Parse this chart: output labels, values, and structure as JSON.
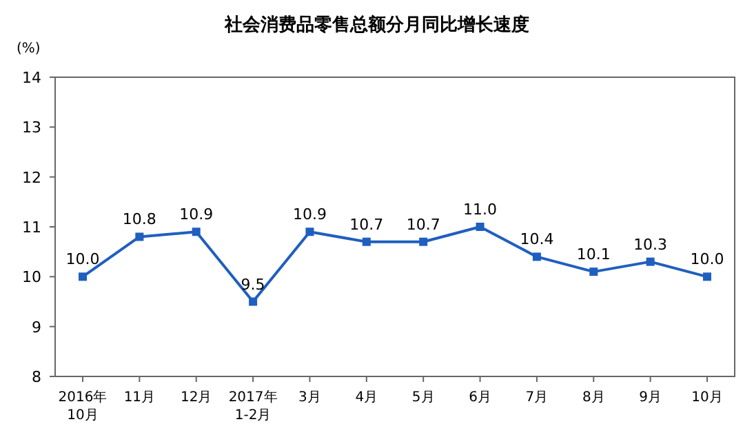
{
  "chart_data": {
    "type": "line",
    "title": "社会消费品零售总额分月同比增长速度",
    "ylabel": "(%)",
    "categories": [
      "2016年\n10月",
      "11月",
      "12月",
      "2017年\n1-2月",
      "3月",
      "4月",
      "5月",
      "6月",
      "7月",
      "8月",
      "9月",
      "10月"
    ],
    "series": [
      {
        "color": "#1f5fbf",
        "values": [
          10.0,
          10.8,
          10.9,
          9.5,
          10.9,
          10.7,
          10.7,
          11.0,
          10.4,
          10.1,
          10.3,
          10.0
        ],
        "value_labels": [
          "10.0",
          "10.8",
          "10.9",
          "9.5",
          "10.9",
          "10.7",
          "10.7",
          "11.0",
          "10.4",
          "10.1",
          "10.3",
          "10.0"
        ]
      }
    ],
    "ylim": [
      8,
      14
    ],
    "yticks": [
      8,
      9,
      10,
      11,
      12,
      13,
      14
    ],
    "marker": "square",
    "line_style": "solid"
  }
}
